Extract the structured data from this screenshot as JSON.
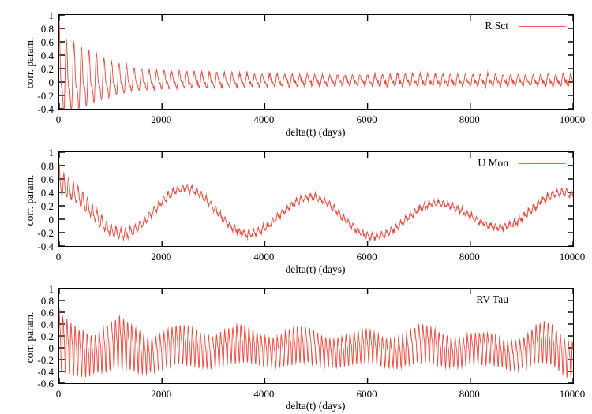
{
  "figure": {
    "background": "#ffffff",
    "axis_color": "#000000",
    "line_color": "#ef4537",
    "tick_length": 7
  },
  "chart_data": {
    "type": "line",
    "title": "",
    "xlabel": "delta(t) (days)",
    "ylabel": "corr. param.",
    "x_range": [
      0,
      10000
    ],
    "x_ticks": [
      0,
      2000,
      4000,
      6000,
      8000,
      10000
    ],
    "grid": false,
    "legend_position": "top-right",
    "plots": [
      {
        "legend": "R Sct",
        "ylim": [
          -0.4,
          1
        ],
        "y_ticks": [
          1,
          0.8,
          0.6,
          0.4,
          0.2,
          0,
          -0.2,
          -0.4
        ],
        "signal": {
          "description": "decaying oscillation, peak 0.62 at lag 146 shrinking to ~0.1 by lag 2000, spike to ~0.95 at lag 0, dips to -0.3 early",
          "fast_period": 146.5,
          "harm2": {
            "frac": 0.45,
            "phase": 1.0
          },
          "mean_interp": "linear",
          "mean_keypoints": [
            [
              0,
              0.02
            ],
            [
              10000,
              0.02
            ]
          ],
          "amp_keypoints": [
            [
              0,
              0.66
            ],
            [
              150,
              0.6
            ],
            [
              450,
              0.5
            ],
            [
              700,
              0.4
            ],
            [
              1000,
              0.29
            ],
            [
              1400,
              0.19
            ],
            [
              2000,
              0.15
            ],
            [
              2800,
              0.13
            ],
            [
              3600,
              0.11
            ],
            [
              4400,
              0.095
            ],
            [
              5200,
              0.08
            ],
            [
              6000,
              0.085
            ],
            [
              6800,
              0.105
            ],
            [
              7600,
              0.09
            ],
            [
              8400,
              0.1
            ],
            [
              9200,
              0.085
            ],
            [
              10000,
              0.1
            ]
          ],
          "spike": 0.3,
          "noise": 0.018,
          "seed": 11
        }
      },
      {
        "legend": "U Mon",
        "ylim": [
          -0.4,
          1
        ],
        "y_ticks": [
          1,
          0.8,
          0.6,
          0.4,
          0.2,
          0,
          -0.2,
          -0.4
        ],
        "signal": {
          "description": "92-day oscillation on slow ~2450-day wave; slow maxima ~0.49,0.46,0.33,0.24,0.40 at lags 0,2450,4900,7350,9800; minima ~-0.22,-0.22,-0.26,-0.12",
          "fast_period": 92.3,
          "harm2": {
            "frac": 0.25,
            "phase": 0.8
          },
          "mean_interp": "cosine",
          "mean_keypoints": [
            [
              0,
              0.49
            ],
            [
              1225,
              -0.22
            ],
            [
              2450,
              0.46
            ],
            [
              3675,
              -0.22
            ],
            [
              4900,
              0.33
            ],
            [
              6125,
              -0.26
            ],
            [
              7350,
              0.24
            ],
            [
              8575,
              -0.12
            ],
            [
              9800,
              0.4
            ],
            [
              10000,
              0.36
            ]
          ],
          "amp_keypoints": [
            [
              0,
              0.2
            ],
            [
              300,
              0.16
            ],
            [
              700,
              0.11
            ],
            [
              1200,
              0.08
            ],
            [
              2000,
              0.06
            ],
            [
              3000,
              0.05
            ],
            [
              5000,
              0.05
            ],
            [
              7000,
              0.045
            ],
            [
              9000,
              0.05
            ],
            [
              10000,
              0.055
            ]
          ],
          "spike": 0.15,
          "noise": 0.02,
          "seed": 23
        }
      },
      {
        "legend": "RV Tau",
        "ylim": [
          -0.6,
          1
        ],
        "y_ticks": [
          1,
          0.8,
          0.6,
          0.4,
          0.2,
          0,
          -0.2,
          -0.4,
          -0.6
        ],
        "signal": {
          "description": "~79-day oscillation, envelope ±0.45 beating with ~1180-day modulation, slow mean wobble ±0.1, dips to -0.5 near lag 700",
          "fast_period": 78.7,
          "harm2": {
            "frac": 0.35,
            "phase": 2.0
          },
          "mean_interp": "cosine",
          "mean_keypoints": [
            [
              0,
              0.08
            ],
            [
              590,
              -0.1
            ],
            [
              1180,
              0.1
            ],
            [
              1770,
              -0.1
            ],
            [
              2360,
              0.08
            ],
            [
              2950,
              -0.05
            ],
            [
              3540,
              0.1
            ],
            [
              4130,
              -0.06
            ],
            [
              4720,
              0.08
            ],
            [
              5310,
              -0.08
            ],
            [
              5900,
              0.05
            ],
            [
              6490,
              -0.08
            ],
            [
              7080,
              0.1
            ],
            [
              7670,
              -0.06
            ],
            [
              8260,
              0.02
            ],
            [
              8850,
              -0.12
            ],
            [
              9440,
              0.12
            ],
            [
              10000,
              -0.18
            ]
          ],
          "amp_keypoints": [
            [
              0,
              0.46
            ],
            [
              400,
              0.36
            ],
            [
              700,
              0.3
            ],
            [
              1180,
              0.42
            ],
            [
              1770,
              0.27
            ],
            [
              2360,
              0.31
            ],
            [
              2950,
              0.25
            ],
            [
              3540,
              0.29
            ],
            [
              4130,
              0.23
            ],
            [
              4720,
              0.29
            ],
            [
              5310,
              0.22
            ],
            [
              5900,
              0.27
            ],
            [
              6490,
              0.22
            ],
            [
              7080,
              0.29
            ],
            [
              7670,
              0.23
            ],
            [
              8260,
              0.25
            ],
            [
              8850,
              0.21
            ],
            [
              9440,
              0.32
            ],
            [
              10000,
              0.28
            ]
          ],
          "spike": 0.25,
          "noise": 0.022,
          "seed": 37
        }
      }
    ]
  },
  "layout_labels": {
    "y_axis_label": "corr. param.",
    "x_axis_label": "delta(t) (days)"
  }
}
